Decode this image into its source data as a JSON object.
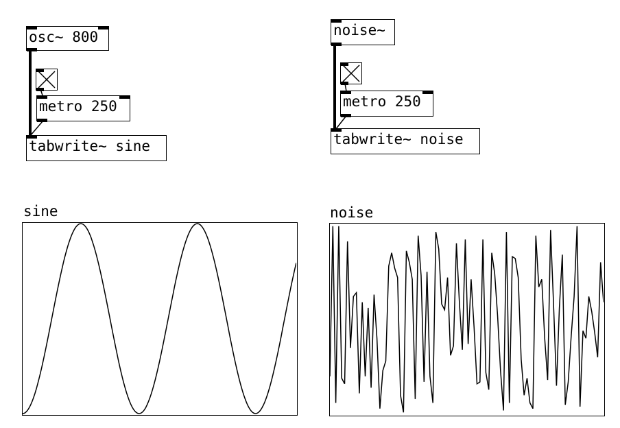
{
  "patch": {
    "left": {
      "osc": "osc~ 800",
      "metro": "metro 250",
      "tabwrite": "tabwrite~ sine"
    },
    "right": {
      "noise": "noise~",
      "metro": "metro 250",
      "tabwrite": "tabwrite~ noise"
    }
  },
  "arrays": {
    "sine": {
      "label": "sine",
      "cycles": 2.35,
      "phase_start": -0.25
    },
    "noise": {
      "label": "noise",
      "values": [
        0.2,
        0.99,
        0.06,
        0.99,
        0.19,
        0.16,
        0.91,
        0.35,
        0.62,
        0.64,
        0.11,
        0.59,
        0.2,
        0.56,
        0.14,
        0.63,
        0.4,
        0.03,
        0.23,
        0.28,
        0.78,
        0.85,
        0.77,
        0.72,
        0.1,
        0.01,
        0.86,
        0.8,
        0.71,
        0.08,
        0.94,
        0.73,
        0.17,
        0.75,
        0.2,
        0.06,
        0.96,
        0.87,
        0.58,
        0.55,
        0.72,
        0.31,
        0.36,
        0.9,
        0.59,
        0.34,
        0.92,
        0.37,
        0.71,
        0.46,
        0.16,
        0.17,
        0.92,
        0.22,
        0.13,
        0.85,
        0.74,
        0.52,
        0.23,
        0.02,
        0.96,
        0.06,
        0.83,
        0.82,
        0.72,
        0.29,
        0.1,
        0.19,
        0.06,
        0.03,
        0.94,
        0.67,
        0.71,
        0.4,
        0.18,
        0.97,
        0.58,
        0.15,
        0.56,
        0.84,
        0.05,
        0.17,
        0.41,
        0.62,
        0.99,
        0.04,
        0.44,
        0.4,
        0.62,
        0.54,
        0.43,
        0.3,
        0.8,
        0.59
      ]
    }
  }
}
